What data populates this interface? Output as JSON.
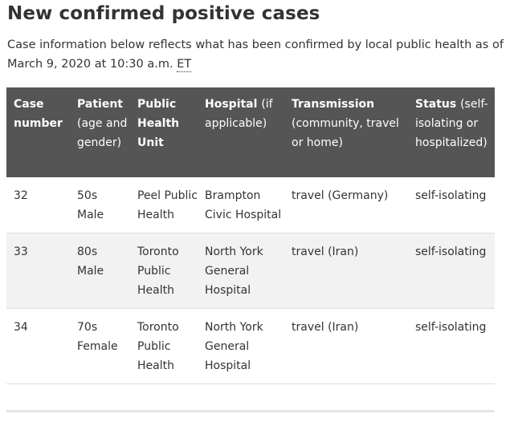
{
  "heading": "New confirmed positive cases",
  "intro": {
    "text_before": "Case information below reflects what has been confirmed by local public health as of March 9, 2020 at 10:30 a.m. ",
    "abbr": "ET"
  },
  "table": {
    "headers": [
      {
        "main": "Case number",
        "sub": ""
      },
      {
        "main": "Patient",
        "sub": "(age and gender)"
      },
      {
        "main": "Public Health Unit",
        "sub": ""
      },
      {
        "main": "Hospital",
        "sub": "(if applicable)"
      },
      {
        "main": "Transmission",
        "sub": "(community, travel or home)"
      },
      {
        "main": "Status",
        "sub": "(self-isolating or hospitalized)"
      }
    ],
    "rows": [
      {
        "case_number": "32",
        "patient_age": "50s",
        "patient_gender": "Male",
        "health_unit": "Peel Public Health",
        "hospital": "Brampton Civic Hospital",
        "transmission": "travel (Germany)",
        "status": "self-isolating"
      },
      {
        "case_number": "33",
        "patient_age": "80s",
        "patient_gender": "Male",
        "health_unit": "Toronto Public Health",
        "hospital": "North York General Hospital",
        "transmission": "travel (Iran)",
        "status": "self-isolating"
      },
      {
        "case_number": "34",
        "patient_age": "70s",
        "patient_gender": "Female",
        "health_unit": "Toronto Public Health",
        "hospital": "North York General Hospital",
        "transmission": "travel (Iran)",
        "status": "self-isolating"
      }
    ]
  }
}
